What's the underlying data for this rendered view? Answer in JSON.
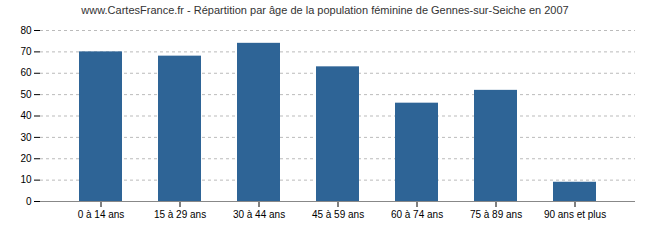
{
  "chart_data": {
    "type": "bar",
    "title": "www.CartesFrance.fr - Répartition par âge de la population féminine de Gennes-sur-Seiche en 2007",
    "categories": [
      "0 à 14 ans",
      "15 à 29 ans",
      "30 à 44 ans",
      "45 à 59 ans",
      "60 à 74 ans",
      "75 à 89 ans",
      "90 ans et plus"
    ],
    "values": [
      70,
      68,
      74,
      63,
      46,
      52,
      9
    ],
    "color": "#2e6496",
    "ylim": [
      0,
      80
    ],
    "yticks": [
      0,
      10,
      20,
      30,
      40,
      50,
      60,
      70,
      80
    ],
    "grid": true
  }
}
